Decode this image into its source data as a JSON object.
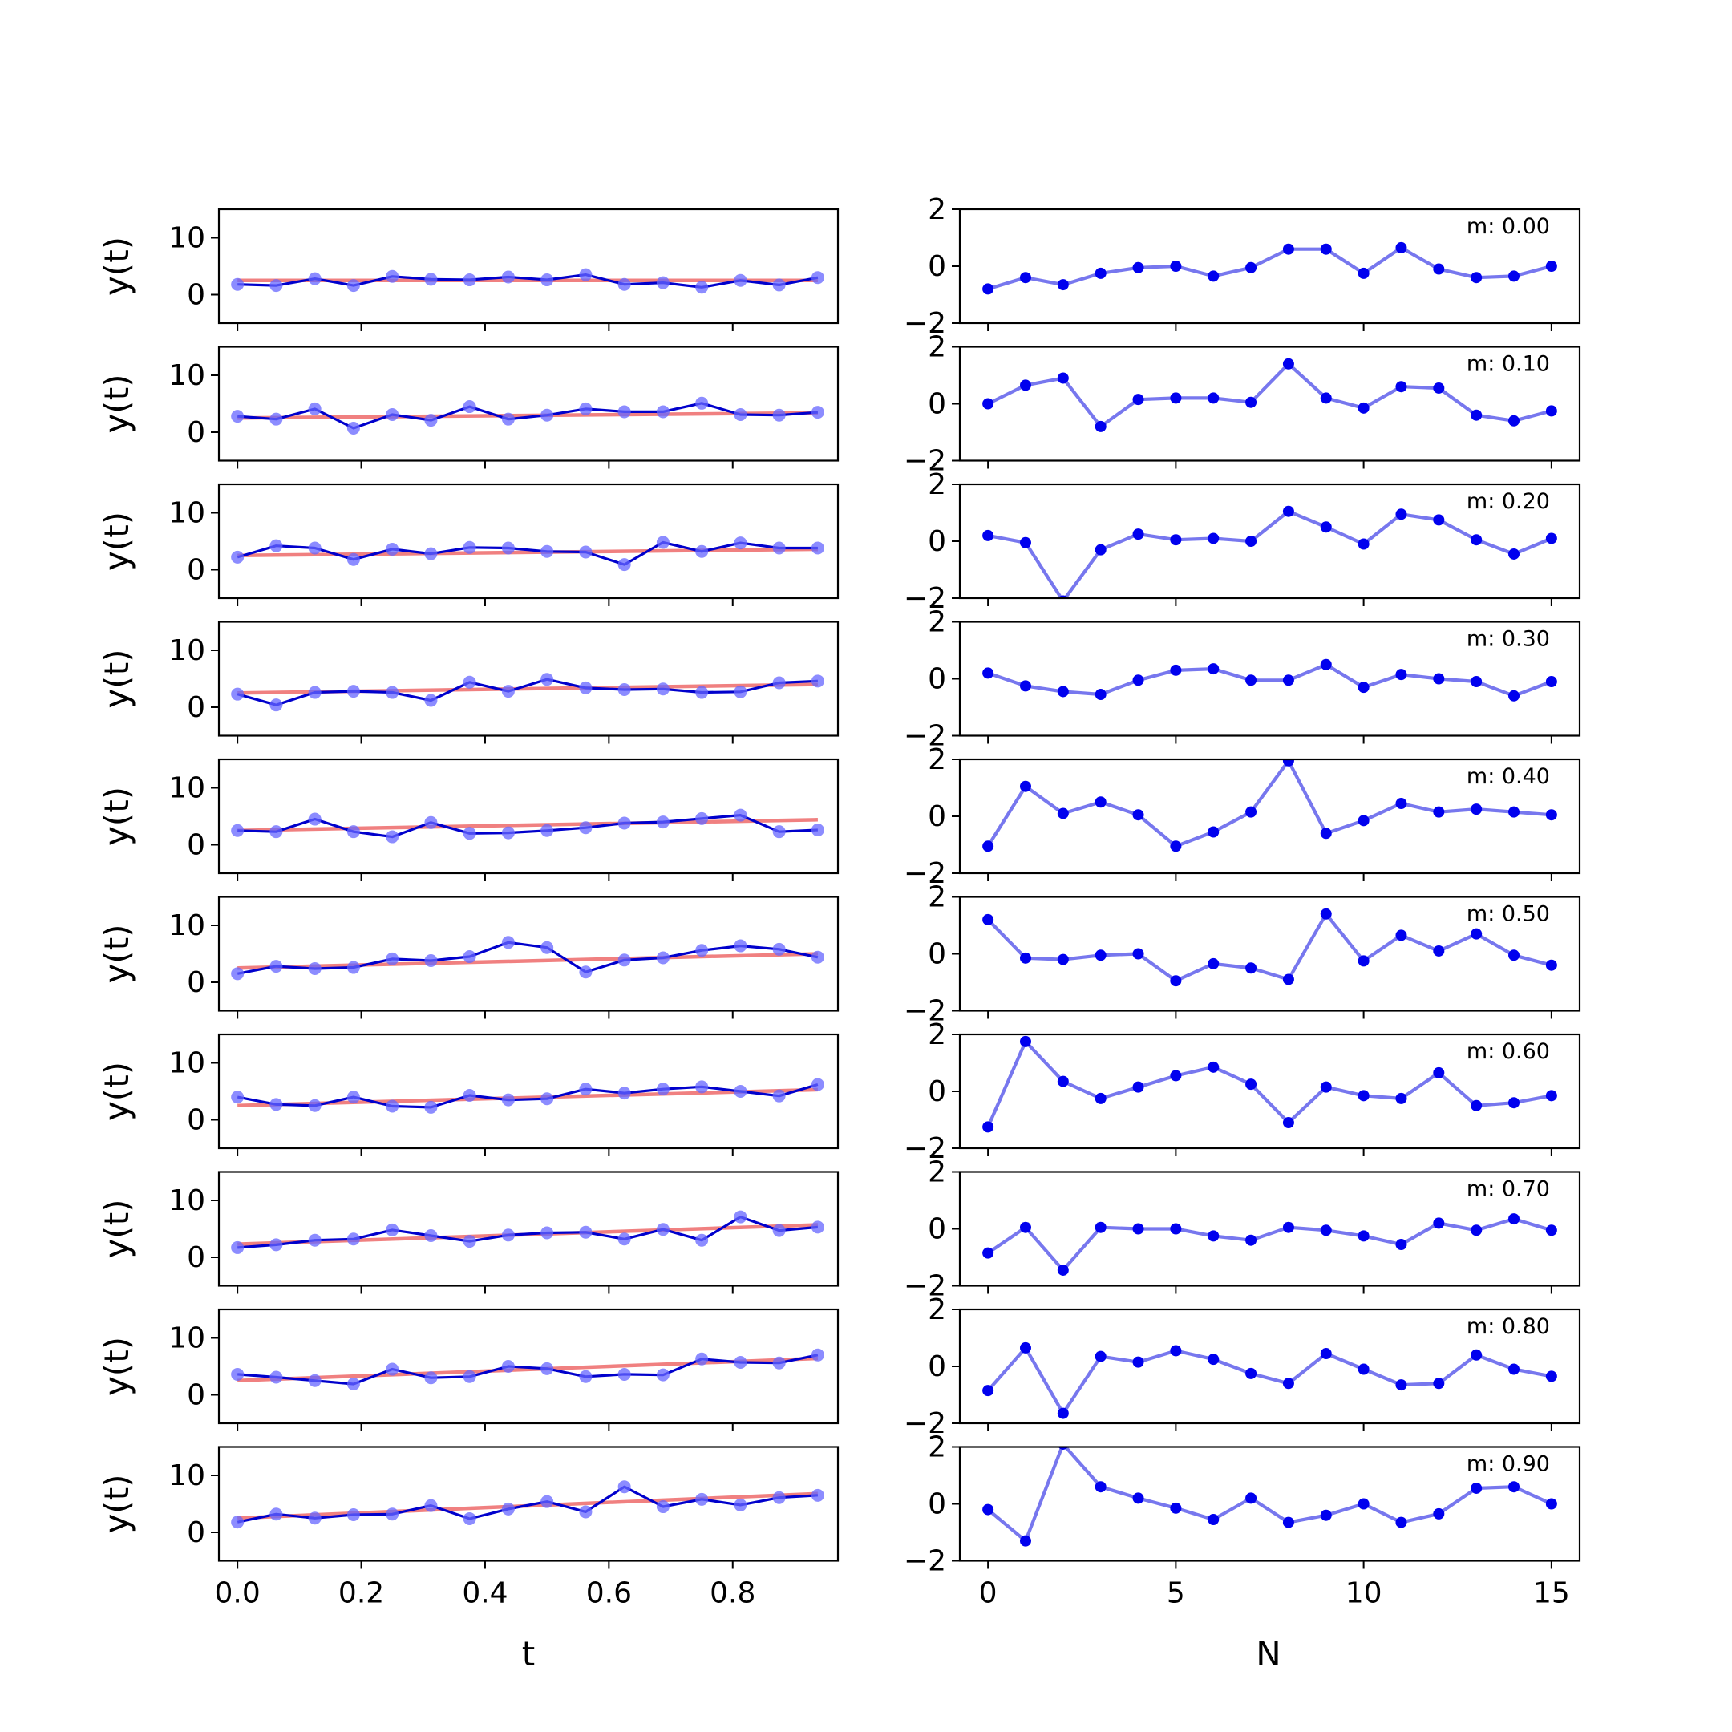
{
  "chart_data": {
    "type": "line",
    "layout": "10x2 grid of subplots",
    "left_column": {
      "xlabel": "t",
      "ylabel": "y(t)",
      "xlim": [
        -0.03,
        0.97
      ],
      "ylim": [
        -5,
        15
      ],
      "xticks": [
        0.0,
        0.2,
        0.4,
        0.6,
        0.8
      ],
      "xtick_labels": [
        "0.0",
        "0.2",
        "0.4",
        "0.6",
        "0.8"
      ],
      "yticks": [
        0,
        10
      ],
      "ytick_labels": [
        "0",
        "10"
      ],
      "t": [
        0,
        0.0625,
        0.125,
        0.1875,
        0.25,
        0.3125,
        0.375,
        0.4375,
        0.5,
        0.5625,
        0.625,
        0.6875,
        0.75,
        0.8125,
        0.875,
        0.9375
      ],
      "fit_color": "#f08080",
      "data_color": "#0000cc",
      "marker_color": "#6666ff",
      "panels": [
        {
          "fit": [
            2.5,
            2.5
          ],
          "y": [
            1.8,
            1.6,
            2.8,
            1.6,
            3.2,
            2.7,
            2.6,
            3.1,
            2.6,
            3.5,
            1.8,
            2.1,
            1.3,
            2.5,
            1.7,
            3.0
          ]
        },
        {
          "fit": [
            2.5,
            3.4
          ],
          "y": [
            2.8,
            2.3,
            4.1,
            0.7,
            3.1,
            2.1,
            4.5,
            2.3,
            3.0,
            4.1,
            3.6,
            3.6,
            5.1,
            3.1,
            3.0,
            3.5
          ]
        },
        {
          "fit": [
            2.5,
            3.6
          ],
          "y": [
            2.2,
            4.2,
            3.8,
            1.8,
            3.6,
            2.8,
            3.9,
            3.8,
            3.2,
            3.1,
            0.9,
            4.8,
            3.2,
            4.7,
            3.8,
            3.8
          ]
        },
        {
          "fit": [
            2.5,
            4.0
          ],
          "y": [
            2.3,
            0.4,
            2.6,
            2.8,
            2.6,
            1.2,
            4.4,
            2.8,
            4.9,
            3.4,
            3.1,
            3.2,
            2.6,
            2.7,
            4.3,
            4.6
          ]
        },
        {
          "fit": [
            2.5,
            4.4
          ],
          "y": [
            2.5,
            2.3,
            4.5,
            2.3,
            1.4,
            3.9,
            2.0,
            2.1,
            2.5,
            3.0,
            3.8,
            4.0,
            4.6,
            5.2,
            2.3,
            2.6
          ]
        },
        {
          "fit": [
            2.5,
            5.0
          ],
          "y": [
            1.5,
            2.8,
            2.4,
            2.6,
            4.1,
            3.8,
            4.5,
            7.0,
            6.1,
            1.8,
            3.9,
            4.3,
            5.6,
            6.4,
            5.8,
            4.4
          ]
        },
        {
          "fit": [
            2.5,
            5.3
          ],
          "y": [
            4.0,
            2.7,
            2.5,
            4.0,
            2.4,
            2.2,
            4.3,
            3.5,
            3.7,
            5.4,
            4.7,
            5.4,
            5.8,
            5.0,
            4.2,
            6.2
          ]
        },
        {
          "fit": [
            2.3,
            5.7
          ],
          "y": [
            1.7,
            2.2,
            3.0,
            3.2,
            4.8,
            3.8,
            2.8,
            3.9,
            4.3,
            4.4,
            3.2,
            4.9,
            3.0,
            7.1,
            4.7,
            5.3
          ]
        },
        {
          "fit": [
            2.5,
            6.4
          ],
          "y": [
            3.6,
            3.1,
            2.5,
            1.9,
            4.5,
            3.0,
            3.2,
            5.0,
            4.6,
            3.2,
            3.6,
            3.5,
            6.3,
            5.7,
            5.6,
            7.0
          ]
        },
        {
          "fit": [
            2.5,
            6.8
          ],
          "y": [
            1.8,
            3.2,
            2.5,
            3.1,
            3.2,
            4.7,
            2.4,
            4.1,
            5.4,
            3.6,
            8.0,
            4.5,
            5.8,
            4.8,
            6.1,
            6.5
          ]
        }
      ]
    },
    "right_column": {
      "xlabel": "N",
      "xlim": [
        -0.75,
        15.75
      ],
      "ylim": [
        -2,
        2
      ],
      "xticks": [
        0,
        5,
        10,
        15
      ],
      "xtick_labels": [
        "0",
        "5",
        "10",
        "15"
      ],
      "yticks": [
        -2,
        0,
        2
      ],
      "ytick_labels": [
        "−2",
        "0",
        "2"
      ],
      "n": [
        0,
        1,
        2,
        3,
        4,
        5,
        6,
        7,
        8,
        9,
        10,
        11,
        12,
        13,
        14,
        15
      ],
      "line_color": "#7777ee",
      "marker_color": "#0000ee",
      "panels": [
        {
          "annotation": "m: 0.00",
          "y": [
            -0.8,
            -0.4,
            -0.65,
            -0.25,
            -0.05,
            0.0,
            -0.35,
            -0.05,
            0.6,
            0.6,
            -0.25,
            0.65,
            -0.1,
            -0.4,
            -0.35,
            0.0
          ]
        },
        {
          "annotation": "m: 0.10",
          "y": [
            0.0,
            0.65,
            0.9,
            -0.8,
            0.15,
            0.2,
            0.2,
            0.05,
            1.4,
            0.2,
            -0.15,
            0.6,
            0.55,
            -0.4,
            -0.6,
            -0.25
          ]
        },
        {
          "annotation": "m: 0.20",
          "y": [
            0.2,
            -0.05,
            -2.1,
            -0.3,
            0.25,
            0.05,
            0.1,
            0.0,
            1.05,
            0.5,
            -0.1,
            0.95,
            0.75,
            0.05,
            -0.45,
            0.1
          ]
        },
        {
          "annotation": "m: 0.30",
          "y": [
            0.2,
            -0.25,
            -0.45,
            -0.55,
            -0.05,
            0.3,
            0.35,
            -0.05,
            -0.05,
            0.5,
            -0.3,
            0.15,
            0.0,
            -0.1,
            -0.6,
            -0.1
          ]
        },
        {
          "annotation": "m: 0.40",
          "y": [
            -1.05,
            1.05,
            0.1,
            0.5,
            0.05,
            -1.05,
            -0.55,
            0.15,
            1.95,
            -0.6,
            -0.15,
            0.45,
            0.15,
            0.25,
            0.15,
            0.05
          ]
        },
        {
          "annotation": "m: 0.50",
          "y": [
            1.2,
            -0.15,
            -0.2,
            -0.05,
            0.0,
            -0.95,
            -0.35,
            -0.5,
            -0.9,
            1.4,
            -0.25,
            0.65,
            0.1,
            0.7,
            -0.05,
            -0.4
          ]
        },
        {
          "annotation": "m: 0.60",
          "y": [
            -1.25,
            1.75,
            0.35,
            -0.25,
            0.15,
            0.55,
            0.85,
            0.25,
            -1.1,
            0.15,
            -0.15,
            -0.25,
            0.65,
            -0.5,
            -0.4,
            -0.15
          ]
        },
        {
          "annotation": "m: 0.70",
          "y": [
            -0.85,
            0.05,
            -1.45,
            0.05,
            0.0,
            0.0,
            -0.25,
            -0.4,
            0.05,
            -0.05,
            -0.25,
            -0.55,
            0.2,
            -0.05,
            0.35,
            -0.05
          ]
        },
        {
          "annotation": "m: 0.80",
          "y": [
            -0.85,
            0.65,
            -1.65,
            0.35,
            0.15,
            0.55,
            0.25,
            -0.25,
            -0.6,
            0.45,
            -0.1,
            -0.65,
            -0.6,
            0.4,
            -0.1,
            -0.35
          ]
        },
        {
          "annotation": "m: 0.90",
          "y": [
            -0.2,
            -1.3,
            2.1,
            0.6,
            0.2,
            -0.15,
            -0.55,
            0.2,
            -0.65,
            -0.4,
            0.0,
            -0.65,
            -0.35,
            0.55,
            0.6,
            0.0
          ]
        }
      ]
    }
  }
}
